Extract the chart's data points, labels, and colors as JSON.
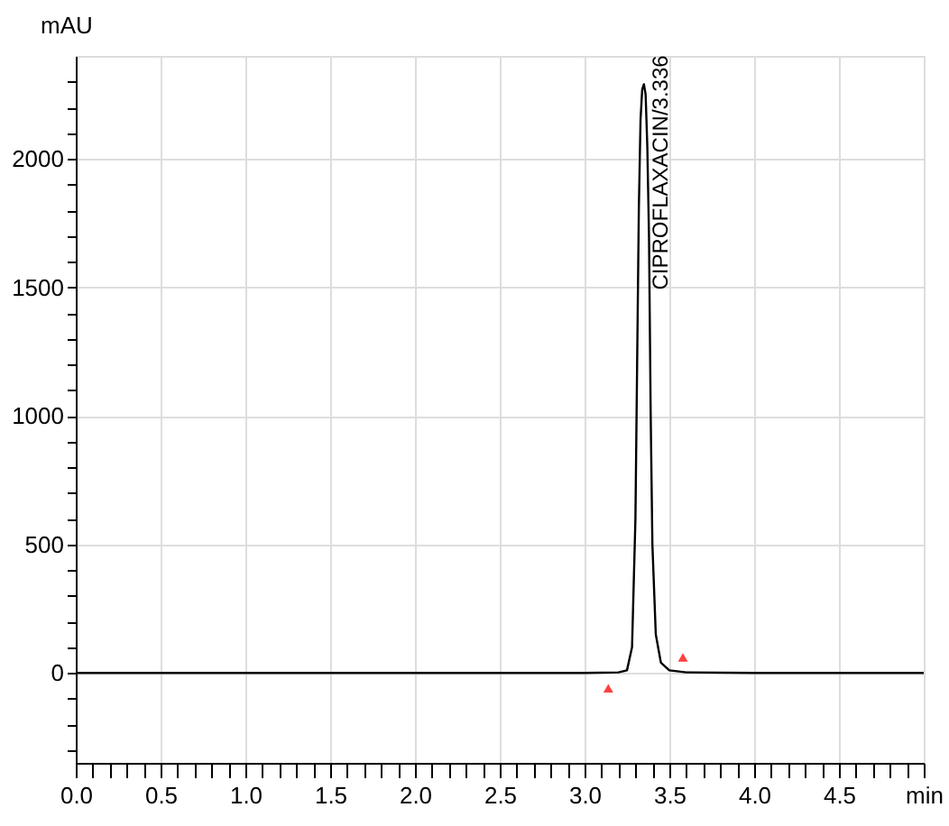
{
  "chart_data": {
    "type": "line",
    "ylabel": "mAU",
    "xlim": [
      0,
      5.0
    ],
    "ylim": [
      -350,
      2400
    ],
    "xticks": [
      {
        "value": 0,
        "label": "0.0"
      },
      {
        "value": 0.1,
        "label": null
      },
      {
        "value": 0.2,
        "label": null
      },
      {
        "value": 0.3,
        "label": null
      },
      {
        "value": 0.4,
        "label": null
      },
      {
        "value": 0.5,
        "label": "0.5"
      },
      {
        "value": 0.6,
        "label": null
      },
      {
        "value": 0.7,
        "label": null
      },
      {
        "value": 0.8,
        "label": null
      },
      {
        "value": 0.9,
        "label": null
      },
      {
        "value": 1.0,
        "label": "1.0"
      },
      {
        "value": 1.1,
        "label": null
      },
      {
        "value": 1.2,
        "label": null
      },
      {
        "value": 1.3,
        "label": null
      },
      {
        "value": 1.4,
        "label": null
      },
      {
        "value": 1.5,
        "label": "1.5"
      },
      {
        "value": 1.6,
        "label": null
      },
      {
        "value": 1.7,
        "label": null
      },
      {
        "value": 1.8,
        "label": null
      },
      {
        "value": 1.9,
        "label": null
      },
      {
        "value": 2.0,
        "label": "2.0"
      },
      {
        "value": 2.1,
        "label": null
      },
      {
        "value": 2.2,
        "label": null
      },
      {
        "value": 2.3,
        "label": null
      },
      {
        "value": 2.4,
        "label": null
      },
      {
        "value": 2.5,
        "label": "2.5"
      },
      {
        "value": 2.6,
        "label": null
      },
      {
        "value": 2.7,
        "label": null
      },
      {
        "value": 2.8,
        "label": null
      },
      {
        "value": 2.9,
        "label": null
      },
      {
        "value": 3.0,
        "label": "3.0"
      },
      {
        "value": 3.1,
        "label": null
      },
      {
        "value": 3.2,
        "label": null
      },
      {
        "value": 3.3,
        "label": null
      },
      {
        "value": 3.4,
        "label": null
      },
      {
        "value": 3.5,
        "label": "3.5"
      },
      {
        "value": 3.6,
        "label": null
      },
      {
        "value": 3.7,
        "label": null
      },
      {
        "value": 3.8,
        "label": null
      },
      {
        "value": 3.9,
        "label": null
      },
      {
        "value": 4.0,
        "label": "4.0"
      },
      {
        "value": 4.1,
        "label": null
      },
      {
        "value": 4.2,
        "label": null
      },
      {
        "value": 4.3,
        "label": null
      },
      {
        "value": 4.4,
        "label": null
      },
      {
        "value": 4.5,
        "label": "4.5"
      },
      {
        "value": 4.6,
        "label": null
      },
      {
        "value": 4.7,
        "label": null
      },
      {
        "value": 4.8,
        "label": null
      },
      {
        "value": 4.9,
        "label": null
      },
      {
        "value": 5.0,
        "label": "min"
      }
    ],
    "yticks": [
      {
        "value": -300,
        "label": null
      },
      {
        "value": -200,
        "label": null
      },
      {
        "value": -100,
        "label": null
      },
      0,
      {
        "value": 100,
        "label": null
      },
      {
        "value": 200,
        "label": null
      },
      {
        "value": 300,
        "label": null
      },
      {
        "value": 400,
        "label": null
      },
      500,
      {
        "value": 600,
        "label": null
      },
      {
        "value": 700,
        "label": null
      },
      {
        "value": 800,
        "label": null
      },
      {
        "value": 900,
        "label": null
      },
      1000,
      {
        "value": 1100,
        "label": null
      },
      {
        "value": 1200,
        "label": null
      },
      {
        "value": 1300,
        "label": null
      },
      {
        "value": 1400,
        "label": null
      },
      1500,
      {
        "value": 1600,
        "label": null
      },
      {
        "value": 1700,
        "label": null
      },
      {
        "value": 1800,
        "label": null
      },
      {
        "value": 1900,
        "label": null
      },
      2000,
      {
        "value": 2100,
        "label": null
      },
      {
        "value": 2200,
        "label": null
      },
      {
        "value": 2300,
        "label": null
      }
    ],
    "grid": true,
    "marker": "none",
    "line_style": "solid",
    "series": [
      {
        "color": "#000000",
        "x": [
          0,
          1.0,
          2.0,
          3.0,
          3.2,
          3.25,
          3.28,
          3.3,
          3.31,
          3.32,
          3.33,
          3.34,
          3.35,
          3.36,
          3.37,
          3.38,
          3.39,
          3.4,
          3.42,
          3.45,
          3.5,
          3.6,
          4.0,
          5.0
        ],
        "values": [
          0,
          0,
          0,
          0,
          2,
          10,
          100,
          600,
          1200,
          1800,
          2150,
          2270,
          2290,
          2250,
          2050,
          1700,
          1000,
          500,
          150,
          40,
          10,
          2,
          0,
          0
        ]
      },
      {
        "type": "scatter",
        "color": "#ff4040",
        "marker": "triangle",
        "x": [
          3.14
        ],
        "values": [
          -60
        ]
      },
      {
        "type": "scatter",
        "color": "#ff4040",
        "marker": "triangle",
        "x": [
          3.58
        ],
        "values": [
          60
        ]
      }
    ],
    "annotations": [
      {
        "text": "CIPROFLAXACIN/3.336",
        "x": 3.35,
        "y": 2290
      }
    ]
  }
}
